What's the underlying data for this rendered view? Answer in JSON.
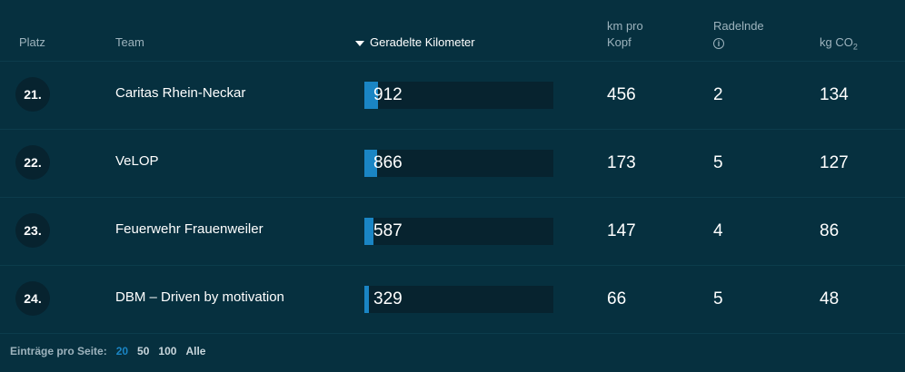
{
  "header": {
    "platz": "Platz",
    "team": "Team",
    "km": "Geradelte Kilometer",
    "km_pro_kopf_line1": "km pro",
    "km_pro_kopf_line2": "Kopf",
    "radelnde": "Radelnde",
    "info_symbol": "i",
    "co2": "kg CO",
    "co2_sub": "2"
  },
  "bar_max_km": 912,
  "rows": [
    {
      "rank": "21.",
      "team": "Caritas Rhein-Neckar",
      "km": "912",
      "km_value": 912,
      "km_pro_kopf": "456",
      "radelnde": "2",
      "co2": "134"
    },
    {
      "rank": "22.",
      "team": "VeLOP",
      "km": "866",
      "km_value": 866,
      "km_pro_kopf": "173",
      "radelnde": "5",
      "co2": "127"
    },
    {
      "rank": "23.",
      "team": "Feuerwehr Frauenweiler",
      "km": "587",
      "km_value": 587,
      "km_pro_kopf": "147",
      "radelnde": "4",
      "co2": "86"
    },
    {
      "rank": "24.",
      "team": "DBM – Driven by motivation",
      "km": "329",
      "km_value": 329,
      "km_pro_kopf": "66",
      "radelnde": "5",
      "co2": "48"
    }
  ],
  "footer": {
    "label": "Einträge pro Seite:",
    "options": [
      "20",
      "50",
      "100",
      "Alle"
    ],
    "active": "20"
  },
  "colors": {
    "background": "#06303f",
    "bar": "#1a85c4",
    "accent": "#1a85c4"
  }
}
